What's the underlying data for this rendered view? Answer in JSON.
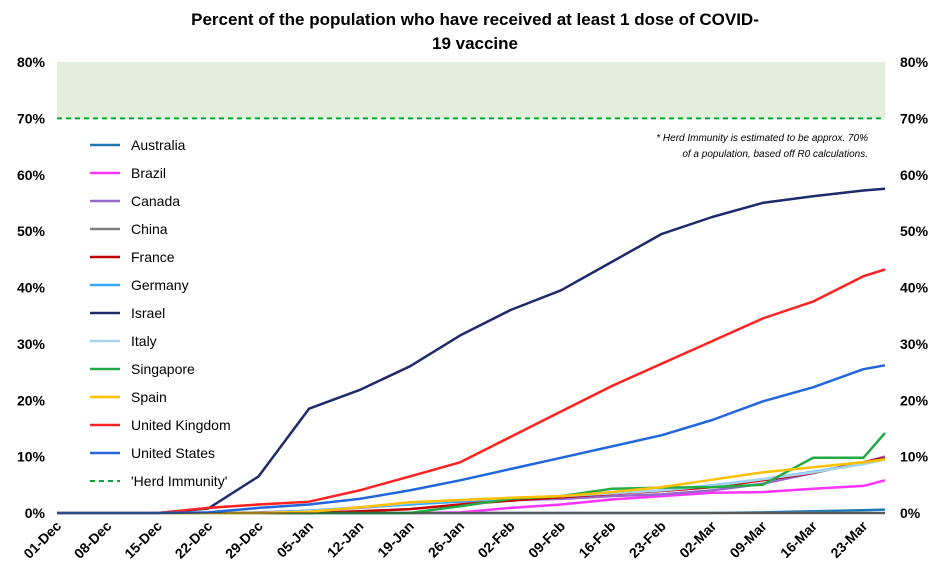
{
  "chart_data": {
    "type": "line",
    "title_line1": "Percent of the population who have received at least 1 dose of COVID-",
    "title_line2": "19 vaccine",
    "xlabel": "",
    "ylabel": "",
    "x_dates": [
      "2020-12-01",
      "2020-12-08",
      "2020-12-15",
      "2020-12-22",
      "2020-12-29",
      "2021-01-05",
      "2021-01-12",
      "2021-01-19",
      "2021-01-26",
      "2021-02-02",
      "2021-02-09",
      "2021-02-16",
      "2021-02-23",
      "2021-03-02",
      "2021-03-09",
      "2021-03-16",
      "2021-03-23",
      "2021-03-26"
    ],
    "x_tick_labels": [
      "01-Dec",
      "08-Dec",
      "15-Dec",
      "22-Dec",
      "29-Dec",
      "05-Jan",
      "12-Jan",
      "19-Jan",
      "26-Jan",
      "02-Feb",
      "09-Feb",
      "16-Feb",
      "23-Feb",
      "02-Mar",
      "09-Mar",
      "16-Mar",
      "23-Mar"
    ],
    "y_ticks": [
      "0%",
      "10%",
      "20%",
      "30%",
      "40%",
      "50%",
      "60%",
      "70%",
      "80%"
    ],
    "ylim": [
      0,
      80
    ],
    "herd_band": [
      70,
      80
    ],
    "herd_band_color": "#e2efda",
    "note_line1": "* Herd Immunity is estimated to be approx. 70%",
    "note_line2": "of a population, based off R0 calculations.",
    "legend_position": "left",
    "series": [
      {
        "name": "Australia",
        "color": "#1f77b4",
        "values": [
          0,
          0,
          0,
          0,
          0,
          0,
          0,
          0,
          0,
          0,
          0,
          0,
          0,
          0,
          0.1,
          0.3,
          0.5,
          0.6
        ]
      },
      {
        "name": "Brazil",
        "color": "#ff33ff",
        "values": [
          0,
          0,
          0,
          0,
          0,
          0,
          0,
          0,
          0.1,
          0.9,
          1.5,
          2.4,
          3.0,
          3.6,
          3.7,
          4.3,
          4.8,
          5.8
        ]
      },
      {
        "name": "Canada",
        "color": "#9966cc",
        "values": [
          0,
          0,
          0,
          0,
          0.1,
          0.4,
          0.9,
          1.6,
          2.0,
          2.3,
          2.5,
          3.0,
          3.3,
          4.0,
          5.2,
          7.1,
          9.0,
          10.0
        ]
      },
      {
        "name": "China",
        "color": "#808080",
        "values": [
          0,
          0,
          0,
          0,
          0,
          0,
          0,
          0,
          0,
          0,
          0,
          0,
          0,
          0,
          0,
          0,
          0,
          0
        ]
      },
      {
        "name": "France",
        "color": "#c00000",
        "values": [
          0,
          0,
          0,
          0,
          0,
          0,
          0.3,
          0.7,
          1.5,
          2.2,
          2.8,
          3.4,
          3.9,
          4.6,
          5.8,
          7.1,
          9.0,
          9.8
        ]
      },
      {
        "name": "Germany",
        "color": "#33aaff",
        "values": [
          0,
          0,
          0,
          0,
          0,
          0.4,
          1.0,
          1.5,
          2.1,
          2.6,
          3.0,
          3.5,
          4.0,
          4.9,
          6.0,
          7.3,
          8.7,
          9.6
        ]
      },
      {
        "name": "Israel",
        "color": "#1f2a6b",
        "values": [
          0,
          0,
          0,
          0.8,
          6.5,
          18.5,
          21.8,
          26.0,
          31.5,
          36.0,
          39.5,
          44.5,
          49.5,
          52.5,
          55.0,
          56.2,
          57.2,
          57.5
        ]
      },
      {
        "name": "Italy",
        "color": "#a6d4ee",
        "values": [
          0,
          0,
          0,
          0,
          0,
          0.3,
          1.0,
          1.8,
          2.3,
          2.6,
          3.0,
          3.5,
          4.0,
          4.8,
          6.0,
          7.2,
          8.7,
          9.5
        ]
      },
      {
        "name": "Singapore",
        "color": "#22aa44",
        "values": [
          0,
          0,
          0,
          0,
          0,
          0,
          0,
          0,
          1.2,
          2.5,
          3.0,
          4.3,
          4.5,
          4.6,
          5.0,
          9.8,
          9.8,
          14.2
        ]
      },
      {
        "name": "Spain",
        "color": "#ffc000",
        "values": [
          0,
          0,
          0,
          0,
          0,
          0.2,
          1.0,
          1.9,
          2.3,
          2.7,
          3.0,
          3.7,
          4.6,
          5.9,
          7.2,
          8.1,
          9.0,
          9.5
        ]
      },
      {
        "name": "United Kingdom",
        "color": "#ff2222",
        "values": [
          0,
          0,
          0,
          0.9,
          1.5,
          2.0,
          4.0,
          6.5,
          9.0,
          13.5,
          18.0,
          22.5,
          26.5,
          30.5,
          34.5,
          37.5,
          42.0,
          43.2
        ]
      },
      {
        "name": "United States",
        "color": "#2266dd",
        "values": [
          0,
          0,
          0,
          0.1,
          0.9,
          1.5,
          2.5,
          4.0,
          5.8,
          7.8,
          9.8,
          11.8,
          13.8,
          16.5,
          19.8,
          22.3,
          25.5,
          26.2
        ]
      },
      {
        "name": "'Herd Immunity'",
        "color": "#00aa33",
        "dashed": true,
        "values": [
          70,
          70,
          70,
          70,
          70,
          70,
          70,
          70,
          70,
          70,
          70,
          70,
          70,
          70,
          70,
          70,
          70,
          70
        ]
      }
    ]
  }
}
